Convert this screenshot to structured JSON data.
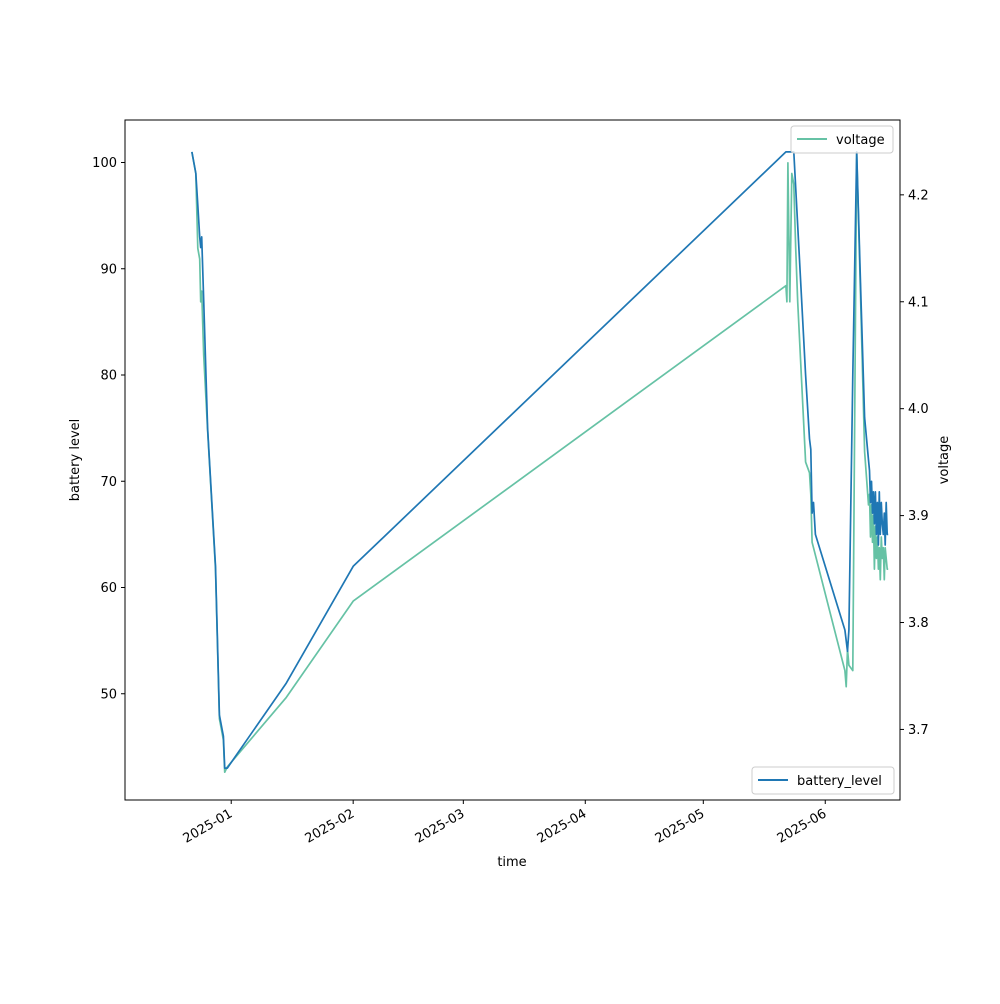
{
  "chart_data": {
    "type": "line",
    "xlabel": "time",
    "ylabel_left": "battery level",
    "ylabel_right": "voltage",
    "x_ticks": [
      "2025-01",
      "2025-02",
      "2025-03",
      "2025-04",
      "2025-05",
      "2025-06"
    ],
    "y_left_ticks": [
      50,
      60,
      70,
      80,
      90,
      100
    ],
    "y_right_ticks": [
      "3.7",
      "3.8",
      "3.9",
      "4.0",
      "4.1",
      "4.2"
    ],
    "y_left_lim": [
      40,
      104
    ],
    "y_right_lim": [
      3.634,
      4.27
    ],
    "x_range": [
      "2024-12-05",
      "2025-06-20"
    ],
    "legend_right": {
      "position": "upper right",
      "entries": [
        "voltage"
      ]
    },
    "legend_left": {
      "position": "lower right",
      "entries": [
        "battery_level"
      ]
    },
    "colors": {
      "battery_level": "#1f77b4",
      "voltage": "#66c2a5"
    },
    "series": [
      {
        "name": "battery_level",
        "axis": "left",
        "x": [
          "2024-12-22",
          "2024-12-23",
          "2024-12-23 12:00",
          "2024-12-24",
          "2024-12-24 06:00",
          "2024-12-24 12:00",
          "2024-12-25",
          "2024-12-26",
          "2024-12-28",
          "2024-12-29",
          "2024-12-29 12:00",
          "2024-12-30",
          "2024-12-30 08:00",
          "2024-12-31",
          "2025-01-15",
          "2025-02-01",
          "2025-05-22",
          "2025-05-23",
          "2025-05-24",
          "2025-05-27",
          "2025-05-28",
          "2025-05-28 08:00",
          "2025-05-28 16:00",
          "2025-05-29",
          "2025-05-29 12:00",
          "2025-06-06",
          "2025-06-06 08:00",
          "2025-06-06 16:00",
          "2025-06-07",
          "2025-06-08",
          "2025-06-09",
          "2025-06-10",
          "2025-06-11",
          "2025-06-12",
          "2025-06-12 06:00",
          "2025-06-12 12:00",
          "2025-06-12 18:00",
          "2025-06-13",
          "2025-06-13 06:00",
          "2025-06-13 12:00",
          "2025-06-13 18:00",
          "2025-06-14",
          "2025-06-14 06:00",
          "2025-06-14 12:00",
          "2025-06-14 18:00",
          "2025-06-15",
          "2025-06-15 06:00",
          "2025-06-15 12:00",
          "2025-06-15 18:00",
          "2025-06-16",
          "2025-06-16 06:00",
          "2025-06-16 12:00",
          "2025-06-16 18:00",
          "2025-06-17"
        ],
        "values": [
          101,
          99,
          96,
          93,
          92,
          93,
          87,
          75,
          62,
          48,
          47,
          46,
          43,
          43,
          51,
          62,
          101,
          101,
          101,
          80,
          74,
          73,
          67,
          68,
          65,
          56,
          55,
          54,
          56,
          80,
          101,
          88,
          76,
          72,
          71,
          68,
          70,
          67,
          69,
          66,
          69,
          65,
          68,
          64,
          69,
          65,
          68,
          66,
          65,
          67,
          64,
          68,
          65,
          65
        ]
      },
      {
        "name": "voltage",
        "axis": "right",
        "x": [
          "2024-12-22",
          "2024-12-23",
          "2024-12-23 12:00",
          "2024-12-24",
          "2024-12-24 06:00",
          "2024-12-24 12:00",
          "2024-12-25",
          "2024-12-26",
          "2024-12-28",
          "2024-12-29",
          "2024-12-29 12:00",
          "2024-12-30",
          "2024-12-30 08:00",
          "2024-12-31",
          "2025-01-15",
          "2025-02-01",
          "2025-05-22",
          "2025-05-22 06:00",
          "2025-05-22 12:00",
          "2025-05-23",
          "2025-05-23 12:00",
          "2025-05-24",
          "2025-05-24 12:00",
          "2025-05-25",
          "2025-05-27",
          "2025-05-28",
          "2025-05-28 08:00",
          "2025-05-28 16:00",
          "2025-05-29",
          "2025-06-06",
          "2025-06-06 08:00",
          "2025-06-06 16:00",
          "2025-06-07",
          "2025-06-08",
          "2025-06-09",
          "2025-06-10",
          "2025-06-11",
          "2025-06-12",
          "2025-06-12 06:00",
          "2025-06-12 12:00",
          "2025-06-12 18:00",
          "2025-06-13",
          "2025-06-13 06:00",
          "2025-06-13 12:00",
          "2025-06-13 18:00",
          "2025-06-14",
          "2025-06-14 06:00",
          "2025-06-14 12:00",
          "2025-06-14 18:00",
          "2025-06-15",
          "2025-06-15 06:00",
          "2025-06-15 12:00",
          "2025-06-15 18:00",
          "2025-06-16",
          "2025-06-16 06:00",
          "2025-06-16 12:00",
          "2025-06-16 18:00",
          "2025-06-17"
        ],
        "values": [
          4.24,
          4.22,
          4.15,
          4.14,
          4.1,
          4.11,
          4.05,
          3.98,
          3.85,
          3.71,
          3.7,
          3.69,
          3.66,
          3.665,
          3.73,
          3.82,
          4.115,
          4.1,
          4.23,
          4.1,
          4.22,
          4.21,
          4.15,
          4.1,
          3.95,
          3.94,
          3.92,
          3.875,
          3.87,
          3.755,
          3.74,
          3.775,
          3.76,
          3.755,
          4.24,
          4.1,
          3.96,
          3.91,
          3.92,
          3.88,
          3.91,
          3.875,
          3.9,
          3.85,
          3.89,
          3.86,
          3.88,
          3.85,
          3.87,
          3.84,
          3.88,
          3.86,
          3.87,
          3.84,
          3.87,
          3.86,
          3.85,
          3.85
        ]
      }
    ]
  }
}
